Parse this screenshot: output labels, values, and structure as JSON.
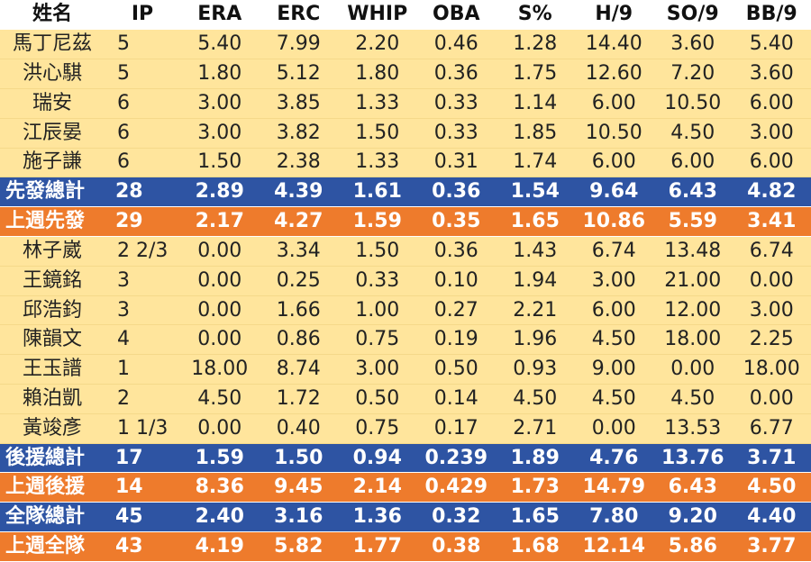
{
  "table": {
    "headers": [
      "姓名",
      "IP",
      "ERA",
      "ERC",
      "WHIP",
      "OBA",
      "S%",
      "H/9",
      "SO/9",
      "BB/9"
    ],
    "rows": [
      {
        "type": "player",
        "cells": [
          "馬丁尼茲",
          "5",
          "5.40",
          "7.99",
          "2.20",
          "0.46",
          "1.28",
          "14.40",
          "3.60",
          "5.40"
        ]
      },
      {
        "type": "player",
        "cells": [
          "洪心騏",
          "5",
          "1.80",
          "5.12",
          "1.80",
          "0.36",
          "1.75",
          "12.60",
          "7.20",
          "3.60"
        ]
      },
      {
        "type": "player",
        "cells": [
          "瑞安",
          "6",
          "3.00",
          "3.85",
          "1.33",
          "0.33",
          "1.14",
          "6.00",
          "10.50",
          "6.00"
        ]
      },
      {
        "type": "player",
        "cells": [
          "江辰晏",
          "6",
          "3.00",
          "3.82",
          "1.50",
          "0.33",
          "1.85",
          "10.50",
          "4.50",
          "3.00"
        ]
      },
      {
        "type": "player",
        "cells": [
          "施子謙",
          "6",
          "1.50",
          "2.38",
          "1.33",
          "0.31",
          "1.74",
          "6.00",
          "6.00",
          "6.00"
        ]
      },
      {
        "type": "blue",
        "cells": [
          "先發總計",
          "28",
          "2.89",
          "4.39",
          "1.61",
          "0.36",
          "1.54",
          "9.64",
          "6.43",
          "4.82"
        ]
      },
      {
        "type": "orange",
        "cells": [
          "上週先發",
          "29",
          "2.17",
          "4.27",
          "1.59",
          "0.35",
          "1.65",
          "10.86",
          "5.59",
          "3.41"
        ]
      },
      {
        "type": "player",
        "cells": [
          "林子崴",
          "2 2/3",
          "0.00",
          "3.34",
          "1.50",
          "0.36",
          "1.43",
          "6.74",
          "13.48",
          "6.74"
        ]
      },
      {
        "type": "player",
        "cells": [
          "王鏡銘",
          "3",
          "0.00",
          "0.25",
          "0.33",
          "0.10",
          "1.94",
          "3.00",
          "21.00",
          "0.00"
        ]
      },
      {
        "type": "player",
        "cells": [
          "邱浩鈞",
          "3",
          "0.00",
          "1.66",
          "1.00",
          "0.27",
          "2.21",
          "6.00",
          "12.00",
          "3.00"
        ]
      },
      {
        "type": "player",
        "cells": [
          "陳韻文",
          "4",
          "0.00",
          "0.86",
          "0.75",
          "0.19",
          "1.96",
          "4.50",
          "18.00",
          "2.25"
        ]
      },
      {
        "type": "player",
        "cells": [
          "王玉譜",
          "1",
          "18.00",
          "8.74",
          "3.00",
          "0.50",
          "0.93",
          "9.00",
          "0.00",
          "18.00"
        ]
      },
      {
        "type": "player",
        "cells": [
          "賴泊凱",
          "2",
          "4.50",
          "1.72",
          "0.50",
          "0.14",
          "4.50",
          "4.50",
          "4.50",
          "0.00"
        ]
      },
      {
        "type": "player",
        "cells": [
          "黃竣彥",
          "1 1/3",
          "0.00",
          "0.40",
          "0.75",
          "0.17",
          "2.71",
          "0.00",
          "13.53",
          "6.77"
        ]
      },
      {
        "type": "blue",
        "cells": [
          "後援總計",
          "17",
          "1.59",
          "1.50",
          "0.94",
          "0.239",
          "1.89",
          "4.76",
          "13.76",
          "3.71"
        ]
      },
      {
        "type": "orange",
        "cells": [
          "上週後援",
          "14",
          "8.36",
          "9.45",
          "2.14",
          "0.429",
          "1.73",
          "14.79",
          "6.43",
          "4.50"
        ]
      },
      {
        "type": "blue",
        "cells": [
          "全隊總計",
          "45",
          "2.40",
          "3.16",
          "1.36",
          "0.32",
          "1.65",
          "7.80",
          "9.20",
          "4.40"
        ]
      },
      {
        "type": "orange",
        "cells": [
          "上週全隊",
          "43",
          "4.19",
          "5.82",
          "1.77",
          "0.38",
          "1.68",
          "12.14",
          "5.86",
          "3.77"
        ]
      }
    ]
  },
  "colors": {
    "player_row_bg": "#ffe59c",
    "summary_blue": "#2e54a3",
    "summary_orange": "#ee7b2c",
    "header_bg": "#ffffff"
  }
}
